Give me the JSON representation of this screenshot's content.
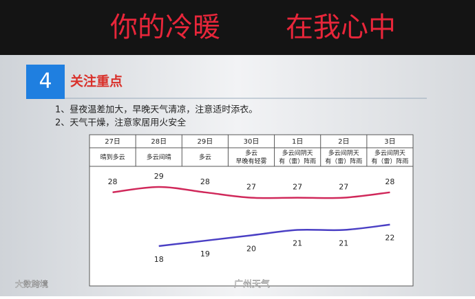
{
  "banner": {
    "left": "你的冷暖",
    "right": "在我心中"
  },
  "slide": {
    "number": "4",
    "title": "关注重点",
    "notes": [
      "1、昼夜温差加大，早晚天气清凉，注意适时添衣。",
      "2、天气干燥，注意家居用火安全"
    ]
  },
  "chart_data": {
    "type": "line",
    "categories": [
      "27日",
      "28日",
      "29日",
      "30日",
      "1日",
      "2日",
      "3日"
    ],
    "weather": [
      [
        "晴到多云"
      ],
      [
        "多云间晴"
      ],
      [
        "多云"
      ],
      [
        "多云",
        "早晚有轻雾"
      ],
      [
        "多云间阴天",
        "有（雷）阵雨"
      ],
      [
        "多云间阴天",
        "有（雷）阵雨"
      ],
      [
        "多云间阴天",
        "有（雷）阵雨"
      ]
    ],
    "series": [
      {
        "color": "#d0285a",
        "values": [
          28,
          29,
          28,
          27,
          27,
          27,
          28
        ]
      },
      {
        "color": "#4a3fc4",
        "values": [
          null,
          18,
          19,
          20,
          21,
          21,
          22
        ]
      }
    ]
  },
  "watermarks": [
    "大数跨境",
    "广州天气"
  ]
}
